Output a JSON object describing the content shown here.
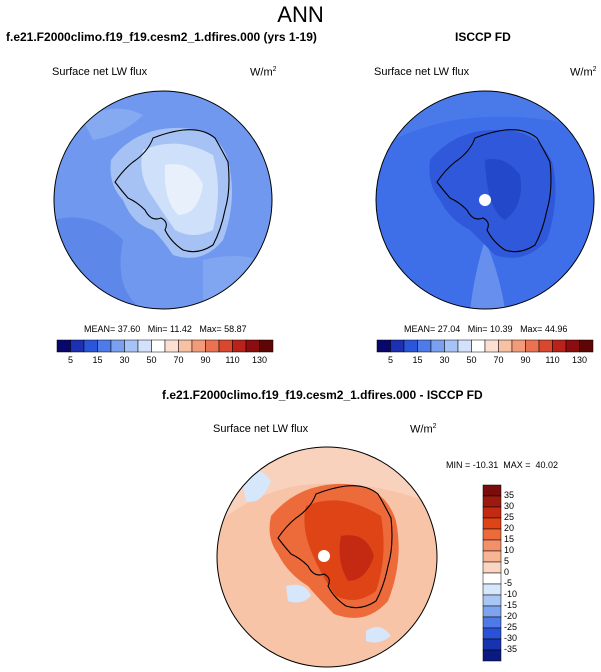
{
  "season": "ANN",
  "panels": [
    {
      "title": "f.e21.F2000climo.f19_f19.cesm2_1.dfires.000 (yrs 1-19)",
      "variable": "Surface net LW flux",
      "units": "W/m",
      "units_exp": "2",
      "stats": "MEAN= 37.60   Min= 11.42   Max= 58.87"
    },
    {
      "title": "ISCCP FD",
      "variable": "Surface net LW flux",
      "units": "W/m",
      "units_exp": "2",
      "stats": "MEAN= 27.04   Min= 10.39   Max= 44.96"
    },
    {
      "title": "f.e21.F2000climo.f19_f19.cesm2_1.dfires.000 - ISCCP FD",
      "variable": "Surface net LW flux",
      "units": "W/m",
      "units_exp": "2",
      "stats": "MIN = -10.31  MAX =  40.02"
    }
  ],
  "chart_data": [
    {
      "type": "heatmap",
      "projection": "south-polar-stereographic",
      "colorbar": {
        "orientation": "horizontal",
        "ticks": [
          "5",
          "15",
          "30",
          "50",
          "70",
          "90",
          "110",
          "130"
        ],
        "levels": [
          5,
          10,
          15,
          20,
          30,
          40,
          50,
          60,
          70,
          80,
          90,
          100,
          110,
          120,
          130
        ],
        "colors": [
          "#08086b",
          "#1d2fb3",
          "#2a57d9",
          "#4d7bea",
          "#7aa0ef",
          "#a7c3f5",
          "#d3e2fa",
          "#ffffff",
          "#fbe0d2",
          "#f7c1a4",
          "#f29b78",
          "#ea7252",
          "#d9472e",
          "#b8221b",
          "#8c0d0d",
          "#5e0505"
        ]
      },
      "mean": 37.6,
      "min": 11.42,
      "max": 58.87
    },
    {
      "type": "heatmap",
      "projection": "south-polar-stereographic",
      "colorbar": {
        "orientation": "horizontal",
        "ticks": [
          "5",
          "15",
          "30",
          "50",
          "70",
          "90",
          "110",
          "130"
        ],
        "levels": [
          5,
          10,
          15,
          20,
          30,
          40,
          50,
          60,
          70,
          80,
          90,
          100,
          110,
          120,
          130
        ],
        "colors": [
          "#08086b",
          "#1d2fb3",
          "#2a57d9",
          "#4d7bea",
          "#7aa0ef",
          "#a7c3f5",
          "#d3e2fa",
          "#ffffff",
          "#fbe0d2",
          "#f7c1a4",
          "#f29b78",
          "#ea7252",
          "#d9472e",
          "#b8221b",
          "#8c0d0d",
          "#5e0505"
        ]
      },
      "mean": 27.04,
      "min": 10.39,
      "max": 44.96
    },
    {
      "type": "heatmap",
      "projection": "south-polar-stereographic",
      "colorbar": {
        "orientation": "vertical",
        "ticks": [
          "35",
          "30",
          "25",
          "20",
          "15",
          "10",
          "5",
          "0",
          "-5",
          "-10",
          "-15",
          "-20",
          "-25",
          "-30",
          "-35"
        ],
        "colors": [
          "#7a0c0c",
          "#9c1a10",
          "#c42a12",
          "#de4416",
          "#ed6a3b",
          "#f3906a",
          "#f7b594",
          "#fad6c2",
          "#ffffff",
          "#d6e6fb",
          "#a9c6f5",
          "#7ea4ee",
          "#4f79e6",
          "#2a52d8",
          "#1733b0",
          "#0a1a80"
        ]
      },
      "min": -10.31,
      "max": 40.02
    }
  ]
}
